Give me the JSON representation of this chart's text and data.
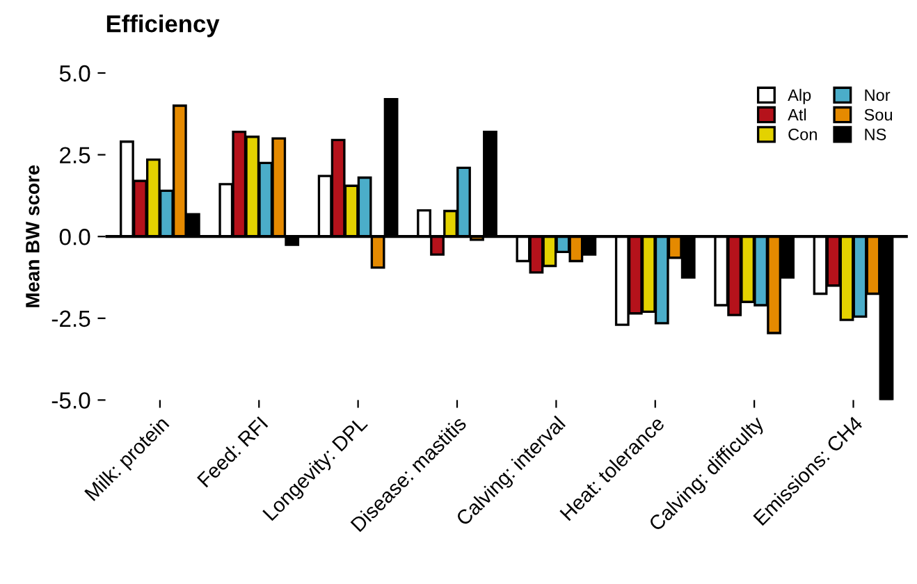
{
  "chart_data": {
    "type": "bar",
    "title": "Efficiency",
    "ylabel": "Mean BW score",
    "categories": [
      "Milk: protein",
      "Feed: RFI",
      "Longevity: DPL",
      "Disease: mastitis",
      "Calving: interval",
      "Heat: tolerance",
      "Calving: difficulty",
      "Emissions: CH4"
    ],
    "series": [
      {
        "name": "Alp",
        "color": "#ffffff",
        "values": [
          2.9,
          1.6,
          1.85,
          0.8,
          -0.75,
          -2.7,
          -2.1,
          -1.75
        ]
      },
      {
        "name": "Atl",
        "color": "#b5121b",
        "values": [
          1.7,
          3.2,
          2.95,
          -0.55,
          -1.1,
          -2.35,
          -2.4,
          -1.5
        ]
      },
      {
        "name": "Con",
        "color": "#e3d200",
        "values": [
          2.35,
          3.05,
          1.55,
          0.78,
          -0.9,
          -2.3,
          -2.0,
          -2.55
        ]
      },
      {
        "name": "Nor",
        "color": "#4badc9",
        "values": [
          1.4,
          2.25,
          1.8,
          2.1,
          -0.47,
          -2.65,
          -2.1,
          -2.45
        ]
      },
      {
        "name": "Sou",
        "color": "#e58a00",
        "values": [
          4.0,
          3.0,
          -0.95,
          -0.1,
          -0.75,
          -0.65,
          -2.95,
          -1.75
        ]
      },
      {
        "name": "NS",
        "color": "#000000",
        "values": [
          0.68,
          -0.25,
          4.2,
          3.2,
          -0.55,
          -1.25,
          -1.25,
          -5.0
        ]
      }
    ],
    "ylim": [
      -5.0,
      5.0
    ],
    "yticks": [
      {
        "value": 5,
        "label": "5.0"
      },
      {
        "value": 2.5,
        "label": "2.5"
      },
      {
        "value": 0,
        "label": "0.0"
      },
      {
        "value": -2.5,
        "label": "-2.5"
      },
      {
        "value": -5,
        "label": "-5.0"
      }
    ],
    "ref_lines": [
      {
        "axis": "y",
        "value": 0,
        "color": "#000000"
      }
    ],
    "grid": false,
    "legend": "top right"
  }
}
